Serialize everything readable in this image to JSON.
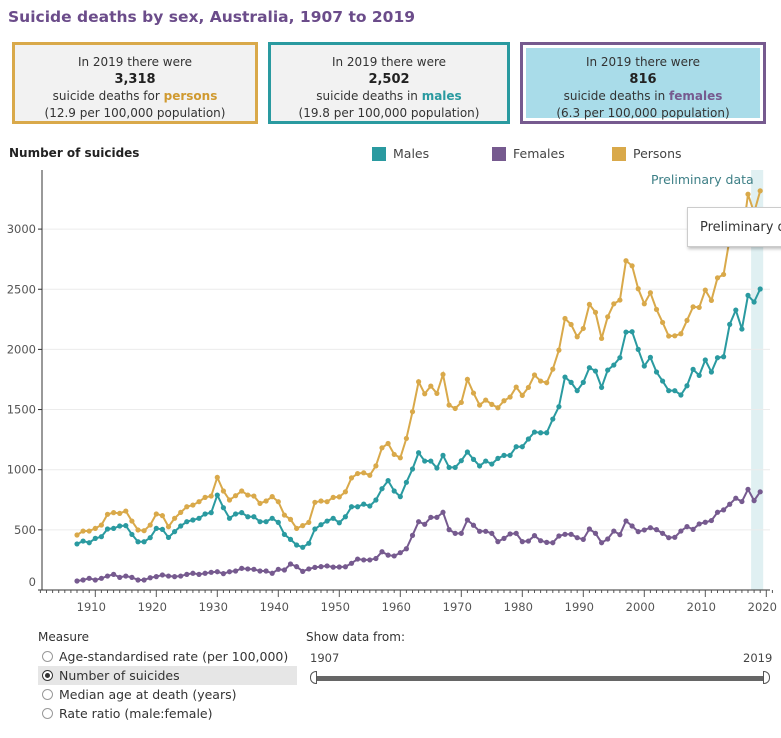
{
  "title": "Suicide deaths by sex, Australia, 1907 to 2019",
  "colors": {
    "males": "#2a9aa0",
    "females": "#765a8f",
    "persons": "#d9a94a",
    "title": "#6b4c8a",
    "preliminary_band": "#e0f0f2"
  },
  "cards": {
    "persons": {
      "line1": "In 2019 there were",
      "value": "3,318",
      "line3_pre": "suicide deaths for ",
      "highlight": "persons",
      "rate": "(12.9 per 100,000 population)"
    },
    "males": {
      "line1": "In 2019 there were",
      "value": "2,502",
      "line3_pre": "suicide deaths in ",
      "highlight": "males",
      "rate": "(19.8 per 100,000 population)"
    },
    "females": {
      "line1": "In 2019 there were",
      "value": "816",
      "line3_pre": "suicide deaths in ",
      "highlight": "females",
      "rate": "(6.3 per 100,000 population)"
    }
  },
  "preliminary_label": "Preliminary data",
  "tooltip_text": "Preliminary data",
  "controls": {
    "measure_label": "Measure",
    "options": [
      {
        "label": "Age-standardised rate (per 100,000)",
        "selected": false
      },
      {
        "label": "Number of suicides",
        "selected": true
      },
      {
        "label": "Median age at death (years)",
        "selected": false
      },
      {
        "label": "Rate ratio (male:female)",
        "selected": false
      }
    ],
    "show_from_label": "Show data from:",
    "range_start": "1907",
    "range_end": "2019"
  },
  "chart_data": {
    "type": "line",
    "ylabel": "Number of suicides",
    "ylim": [
      0,
      3500
    ],
    "yticks": [
      0,
      500,
      1000,
      1500,
      2000,
      2500,
      3000
    ],
    "xticks": [
      1910,
      1920,
      1930,
      1940,
      1950,
      1960,
      1970,
      1980,
      1990,
      2000,
      2010,
      2020
    ],
    "xlim": [
      1907,
      2019
    ],
    "grid": "horizontal",
    "legend_placement": "top",
    "preliminary_years": [
      2018,
      2019
    ],
    "x_start": 1907,
    "series": [
      {
        "name": "Males",
        "color": "#2a9aa0",
        "values": [
          383,
          407,
          393,
          429,
          443,
          507,
          512,
          532,
          535,
          462,
          401,
          401,
          435,
          512,
          504,
          437,
          485,
          532,
          568,
          582,
          596,
          632,
          643,
          789,
          684,
          596,
          632,
          643,
          609,
          609,
          568,
          568,
          596,
          562,
          462,
          421,
          374,
          355,
          388,
          507,
          543,
          573,
          596,
          559,
          609,
          692,
          692,
          714,
          698,
          748,
          842,
          909,
          823,
          776,
          895,
          1006,
          1141,
          1072,
          1072,
          1014,
          1119,
          1019,
          1019,
          1075,
          1147,
          1086,
          1031,
          1072,
          1047,
          1094,
          1119,
          1119,
          1191,
          1191,
          1255,
          1313,
          1307,
          1307,
          1421,
          1524,
          1770,
          1726,
          1657,
          1726,
          1848,
          1820,
          1684,
          1828,
          1870,
          1931,
          2144,
          2147,
          2000,
          1862,
          1934,
          1812,
          1737,
          1657,
          1657,
          1621,
          1698,
          1834,
          1784,
          1912,
          1812,
          1931,
          1939,
          2208,
          2327,
          2169,
          2449,
          2394,
          2502
        ]
      },
      {
        "name": "Females",
        "color": "#765a8f",
        "values": [
          75,
          83,
          97,
          83,
          97,
          116,
          130,
          105,
          116,
          105,
          83,
          83,
          102,
          111,
          125,
          116,
          111,
          116,
          130,
          139,
          130,
          139,
          147,
          152,
          136,
          152,
          158,
          180,
          175,
          172,
          158,
          158,
          139,
          172,
          166,
          216,
          194,
          155,
          175,
          188,
          194,
          200,
          190,
          191,
          193,
          222,
          257,
          250,
          250,
          262,
          318,
          290,
          283,
          310,
          343,
          454,
          568,
          546,
          604,
          604,
          646,
          502,
          471,
          471,
          582,
          538,
          488,
          488,
          471,
          402,
          429,
          466,
          471,
          402,
          407,
          452,
          410,
          396,
          393,
          449,
          463,
          463,
          435,
          421,
          507,
          471,
          393,
          424,
          490,
          460,
          574,
          532,
          485,
          499,
          518,
          502,
          471,
          435,
          438,
          490,
          527,
          504,
          549,
          563,
          577,
          646,
          666,
          713,
          763,
          735,
          837,
          743,
          816
        ]
      },
      {
        "name": "Persons",
        "color": "#d9a94a",
        "values": [
          457,
          490,
          490,
          512,
          540,
          629,
          643,
          637,
          656,
          573,
          499,
          493,
          540,
          632,
          618,
          526,
          596,
          645,
          692,
          706,
          734,
          770,
          781,
          936,
          823,
          748,
          784,
          823,
          789,
          781,
          720,
          740,
          776,
          734,
          623,
          587,
          512,
          535,
          562,
          729,
          740,
          734,
          770,
          774,
          816,
          932,
          968,
          974,
          954,
          1032,
          1182,
          1218,
          1127,
          1099,
          1260,
          1482,
          1731,
          1631,
          1695,
          1634,
          1792,
          1537,
          1509,
          1559,
          1751,
          1637,
          1537,
          1579,
          1543,
          1515,
          1573,
          1604,
          1687,
          1618,
          1684,
          1787,
          1737,
          1723,
          1836,
          1994,
          2257,
          2207,
          2105,
          2174,
          2374,
          2308,
          2091,
          2271,
          2379,
          2410,
          2737,
          2695,
          2504,
          2379,
          2471,
          2332,
          2224,
          2111,
          2113,
          2130,
          2241,
          2354,
          2349,
          2493,
          2407,
          2595,
          2623,
          2921,
          3090,
          2904,
          3290,
          3137,
          3318
        ]
      }
    ]
  }
}
